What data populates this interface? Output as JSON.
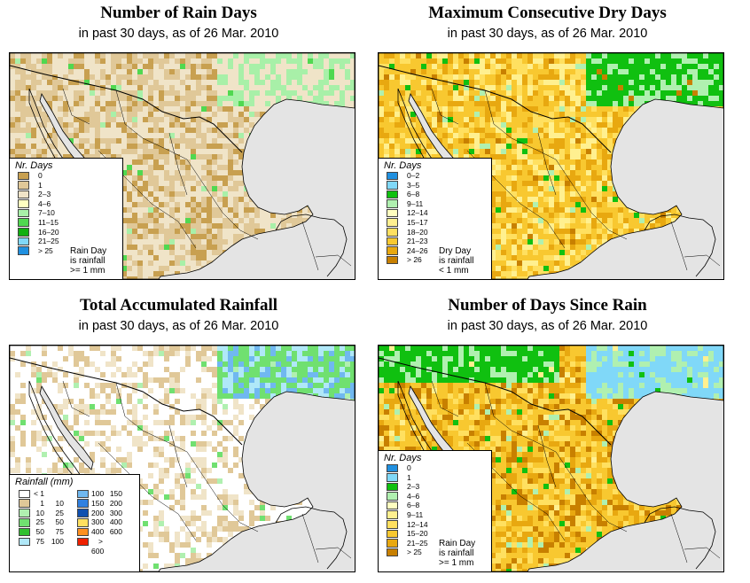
{
  "panels": [
    {
      "title": "Number of Rain Days",
      "subtitle": "in past 30 days, as of  26 Mar. 2010",
      "legend_title": "Nr. Days",
      "legend_items": [
        {
          "label": "0",
          "color": "#c8a050"
        },
        {
          "label": "1",
          "color": "#e0c898"
        },
        {
          "label": "2–3",
          "color": "#f0e4c8"
        },
        {
          "label": "4–6",
          "color": "#ffffc0"
        },
        {
          "label": "7–10",
          "color": "#a8f0a8"
        },
        {
          "label": "11–15",
          "color": "#50d850"
        },
        {
          "label": "16–20",
          "color": "#10b010"
        },
        {
          "label": "21–25",
          "color": "#80d8f8"
        },
        {
          "label": "> 25",
          "color": "#2090e0"
        }
      ],
      "note": [
        "Rain Day",
        "is rainfall",
        ">= 1 mm"
      ]
    },
    {
      "title": "Maximum Consecutive Dry Days",
      "subtitle": "in past 30 days, as of  26 Mar. 2010",
      "legend_title": "Nr. Days",
      "legend_items": [
        {
          "label": "0–2",
          "color": "#2090e0"
        },
        {
          "label": "3–5",
          "color": "#80d8f8"
        },
        {
          "label": "6–8",
          "color": "#10c010"
        },
        {
          "label": "9–11",
          "color": "#b0f0b0"
        },
        {
          "label": "12–14",
          "color": "#ffffc0"
        },
        {
          "label": "15–17",
          "color": "#fff090"
        },
        {
          "label": "18–20",
          "color": "#ffe060"
        },
        {
          "label": "21–23",
          "color": "#f8c830"
        },
        {
          "label": "24–26",
          "color": "#e8a810"
        },
        {
          "label": "> 26",
          "color": "#c88000"
        }
      ],
      "note": [
        "Dry Day",
        "is rainfall",
        "< 1 mm"
      ]
    },
    {
      "title": "Total Accumulated Rainfall",
      "subtitle": "in past 30 days, as of  26 Mar. 2010",
      "legend_title": "Rainfall (mm)",
      "legend_left": [
        {
          "a": "< 1",
          "b": "",
          "color": "#ffffff"
        },
        {
          "a": "1",
          "b": "10",
          "color": "#e0c898"
        },
        {
          "a": "10",
          "b": "25",
          "color": "#b0f0b0"
        },
        {
          "a": "25",
          "b": "50",
          "color": "#70e070"
        },
        {
          "a": "50",
          "b": "75",
          "color": "#30c030"
        },
        {
          "a": "75",
          "b": "100",
          "color": "#b0e8f8"
        }
      ],
      "legend_right": [
        {
          "a": "100",
          "b": "150",
          "color": "#70b8f0"
        },
        {
          "a": "150",
          "b": "200",
          "color": "#3080e0"
        },
        {
          "a": "200",
          "b": "300",
          "color": "#1050b0"
        },
        {
          "a": "300",
          "b": "400",
          "color": "#ffe060"
        },
        {
          "a": "400",
          "b": "600",
          "color": "#ff9020"
        },
        {
          "a": "> 600",
          "b": "",
          "color": "#f02000"
        }
      ]
    },
    {
      "title": "Number of Days Since Rain",
      "subtitle": "in past 30 days, as of  26 Mar. 2010",
      "legend_title": "Nr. Days",
      "legend_items": [
        {
          "label": "0",
          "color": "#2090e0"
        },
        {
          "label": "1",
          "color": "#80d8f8"
        },
        {
          "label": "2–3",
          "color": "#10c010"
        },
        {
          "label": "4–6",
          "color": "#b0f0b0"
        },
        {
          "label": "6–8",
          "color": "#ffffc0"
        },
        {
          "label": "9–11",
          "color": "#fff090"
        },
        {
          "label": "12–14",
          "color": "#ffe060"
        },
        {
          "label": "15–20",
          "color": "#f8c830"
        },
        {
          "label": "21–25",
          "color": "#e8a810"
        },
        {
          "label": "> 25",
          "color": "#c88000"
        }
      ],
      "note": [
        "Rain Day",
        "is rainfall",
        ">= 1 mm"
      ]
    }
  ]
}
